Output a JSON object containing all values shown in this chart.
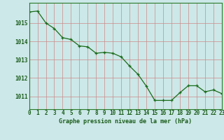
{
  "x": [
    0,
    1,
    2,
    3,
    4,
    5,
    6,
    7,
    8,
    9,
    10,
    11,
    12,
    13,
    14,
    15,
    16,
    17,
    18,
    19,
    20,
    21,
    22,
    23
  ],
  "y": [
    1015.6,
    1015.65,
    1015.0,
    1014.7,
    1014.2,
    1014.1,
    1013.75,
    1013.7,
    1013.35,
    1013.4,
    1013.35,
    1013.15,
    1012.65,
    1012.2,
    1011.55,
    1010.78,
    1010.78,
    1010.78,
    1011.2,
    1011.58,
    1011.58,
    1011.25,
    1011.35,
    1011.15
  ],
  "line_color": "#1a6b1a",
  "marker": "+",
  "bg_color": "#cce8e8",
  "grid_color": "#cc8888",
  "title": "Graphe pression niveau de la mer (hPa)",
  "title_color": "#1a5c1a",
  "ylabel_ticks": [
    1011,
    1012,
    1013,
    1014,
    1015
  ],
  "ylim": [
    1010.3,
    1016.1
  ],
  "xlim": [
    0,
    23
  ],
  "tick_fontsize": 5.5,
  "title_fontsize": 6.0,
  "spine_color": "#2a7a2a"
}
